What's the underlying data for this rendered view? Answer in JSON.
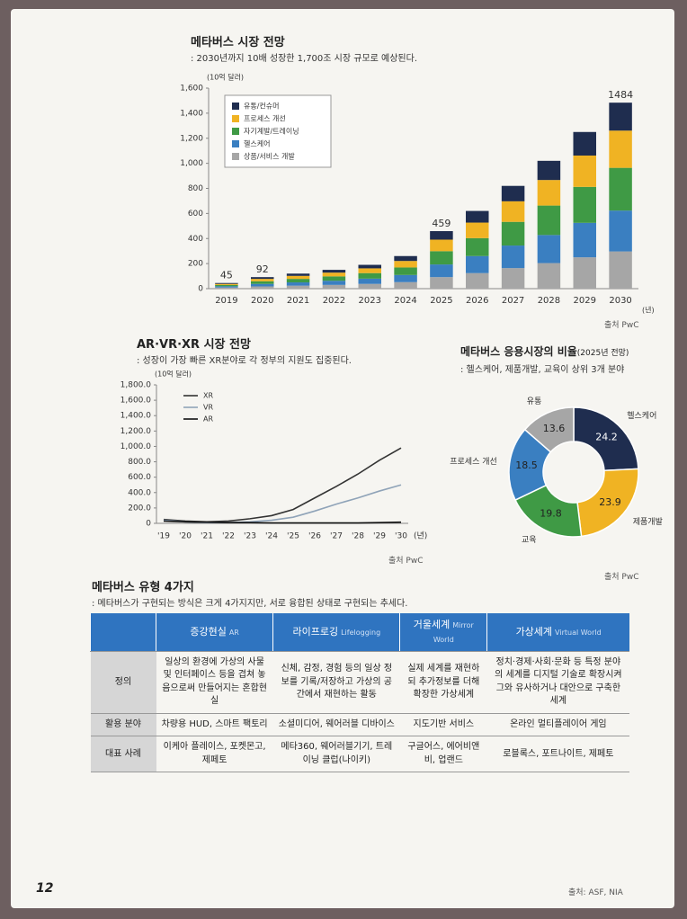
{
  "chart_data": [
    {
      "type": "bar",
      "stacked": true,
      "title": "메타버스 시장 전망",
      "subtitle": ": 2030년까지 10배 성장한 1,700조 시장 규모로 예상된다.",
      "y_label": "(10억 달러)",
      "x_label": "(년)",
      "categories": [
        "2019",
        "2020",
        "2021",
        "2022",
        "2023",
        "2024",
        "2025",
        "2026",
        "2027",
        "2028",
        "2029",
        "2030"
      ],
      "series": [
        {
          "name": "유통/컨슈머",
          "color": "#1f2d4f",
          "values": [
            7,
            14,
            18,
            22,
            28,
            39,
            68,
            93,
            123,
            153,
            188,
            223
          ]
        },
        {
          "name": "프로세스 개선",
          "color": "#f0b323",
          "values": [
            9,
            19,
            24,
            30,
            38,
            52,
            92,
            124,
            164,
            204,
            250,
            297
          ]
        },
        {
          "name": "자기계발/트레이닝",
          "color": "#3f9a45",
          "values": [
            10,
            21,
            28,
            35,
            44,
            60,
            106,
            143,
            189,
            235,
            287,
            341
          ]
        },
        {
          "name": "헬스케어",
          "color": "#3a7fc1",
          "values": [
            10,
            20,
            26,
            33,
            42,
            57,
            101,
            136,
            180,
            224,
            275,
            326
          ]
        },
        {
          "name": "상품/서비스 개발",
          "color": "#a6a6a6",
          "values": [
            9,
            18,
            24,
            30,
            38,
            52,
            92,
            124,
            164,
            204,
            250,
            297
          ]
        }
      ],
      "total_labels": [
        45,
        92,
        null,
        null,
        null,
        null,
        459,
        null,
        null,
        null,
        null,
        1484
      ],
      "ylim": [
        0,
        1600
      ],
      "yticks": [
        0,
        200,
        400,
        600,
        800,
        {
          "value": 1000,
          "label": "1,000"
        },
        {
          "value": 1200,
          "label": "1,200"
        },
        {
          "value": 1400,
          "label": "1,400"
        },
        {
          "value": 1600,
          "label": "1,600"
        }
      ],
      "legend": "upper left",
      "grid": false,
      "source": "출처 PwC"
    },
    {
      "type": "line",
      "title": "AR·VR·XR 시장 전망",
      "subtitle": ": 성장이 가장 빠른 XR분야로 각 정부의 지원도 집중된다.",
      "y_label": "(10억 달러)",
      "x_label": "(년)",
      "categories": [
        "'19",
        "'20",
        "'21",
        "'22",
        "'23",
        "'24",
        "'25",
        "'26",
        "'27",
        "'28",
        "'29",
        "'30"
      ],
      "series": [
        {
          "name": "XR",
          "color": "#333333",
          "values": [
            50,
            30,
            20,
            30,
            60,
            100,
            180,
            330,
            480,
            640,
            820,
            980
          ]
        },
        {
          "name": "VR",
          "color": "#8fa3b8",
          "values": [
            40,
            20,
            10,
            10,
            20,
            40,
            80,
            160,
            250,
            330,
            420,
            500
          ]
        },
        {
          "name": "AR",
          "color": "#111111",
          "values": [
            30,
            20,
            15,
            10,
            10,
            5,
            5,
            5,
            5,
            5,
            10,
            15
          ]
        }
      ],
      "ylim": [
        0,
        1800
      ],
      "yticks": [
        0,
        {
          "value": 200,
          "label": "200.0"
        },
        {
          "value": 400,
          "label": "400.0"
        },
        {
          "value": 600,
          "label": "600.0"
        },
        {
          "value": 800,
          "label": "800.0"
        },
        {
          "value": 1000,
          "label": "1,000.0"
        },
        {
          "value": 1200,
          "label": "1,200.0"
        },
        {
          "value": 1400,
          "label": "1,400.0"
        },
        {
          "value": 1600,
          "label": "1,600.0"
        },
        {
          "value": 1800,
          "label": "1,800.0"
        }
      ],
      "legend": "upper left",
      "grid": false,
      "source": "출처 PwC"
    },
    {
      "type": "pie",
      "donut": true,
      "title": "메타버스 응용시장의 비율",
      "title_note": "(2025년 전망)",
      "subtitle": ": 헬스케어, 제품개발, 교육이 상위 3개 분야",
      "categories": [
        "헬스케어",
        "제품개발",
        "교육",
        "프로세스 개선",
        "유통"
      ],
      "values": [
        24.2,
        23.9,
        19.8,
        18.5,
        13.6
      ],
      "colors": [
        "#1f2d4f",
        "#f0b323",
        "#3f9a45",
        "#3a7fc1",
        "#a6a6a6"
      ],
      "source": "출처 PwC"
    }
  ],
  "table": {
    "title": "메타버스 유형 4가지",
    "subtitle": ": 메타버스가 구현되는 방식은 크게 4가지지만, 서로 융합된 상태로 구현되는 추세다.",
    "columns": [
      {
        "title": "증강현실",
        "sub": "AR"
      },
      {
        "title": "라이프로깅",
        "sub": "Lifelogging"
      },
      {
        "title": "거울세계",
        "sub": "Mirror World"
      },
      {
        "title": "가상세계",
        "sub": "Virtual World"
      }
    ],
    "rows": [
      {
        "header": "정의",
        "cells": [
          "일상의 환경에 가상의 사물 및 인터페이스 등을 겹쳐 놓음으로써 만들어지는 혼합현실",
          "신체, 감정, 경험 등의 일상 정보를 기록/저장하고 가상의 공간에서 재현하는 활동",
          "실제 세계를 재현하되 추가정보를 더해 확장한 가상세계",
          "정치·경제·사회·문화 등 특정 분야의 세계를 디지털 기술로 확장시켜 그와 유사하거나 대안으로 구축한 세계"
        ]
      },
      {
        "header": "활용 분야",
        "cells": [
          "차량용 HUD, 스마트 팩토리",
          "소셜미디어, 웨어러블 디바이스",
          "지도기반 서비스",
          "온라인 멀티플레이어 게임"
        ]
      },
      {
        "header": "대표 사례",
        "cells": [
          "이케아 플레이스, 포켓몬고, 제페토",
          "메타360, 웨어러블기기, 트레이닝 클럽(나이키)",
          "구글어스, 에어비앤비, 업랜드",
          "로블록스, 포트나이트, 제페토"
        ]
      }
    ],
    "source": "출처: ASF, NIA"
  },
  "page_number": "12"
}
